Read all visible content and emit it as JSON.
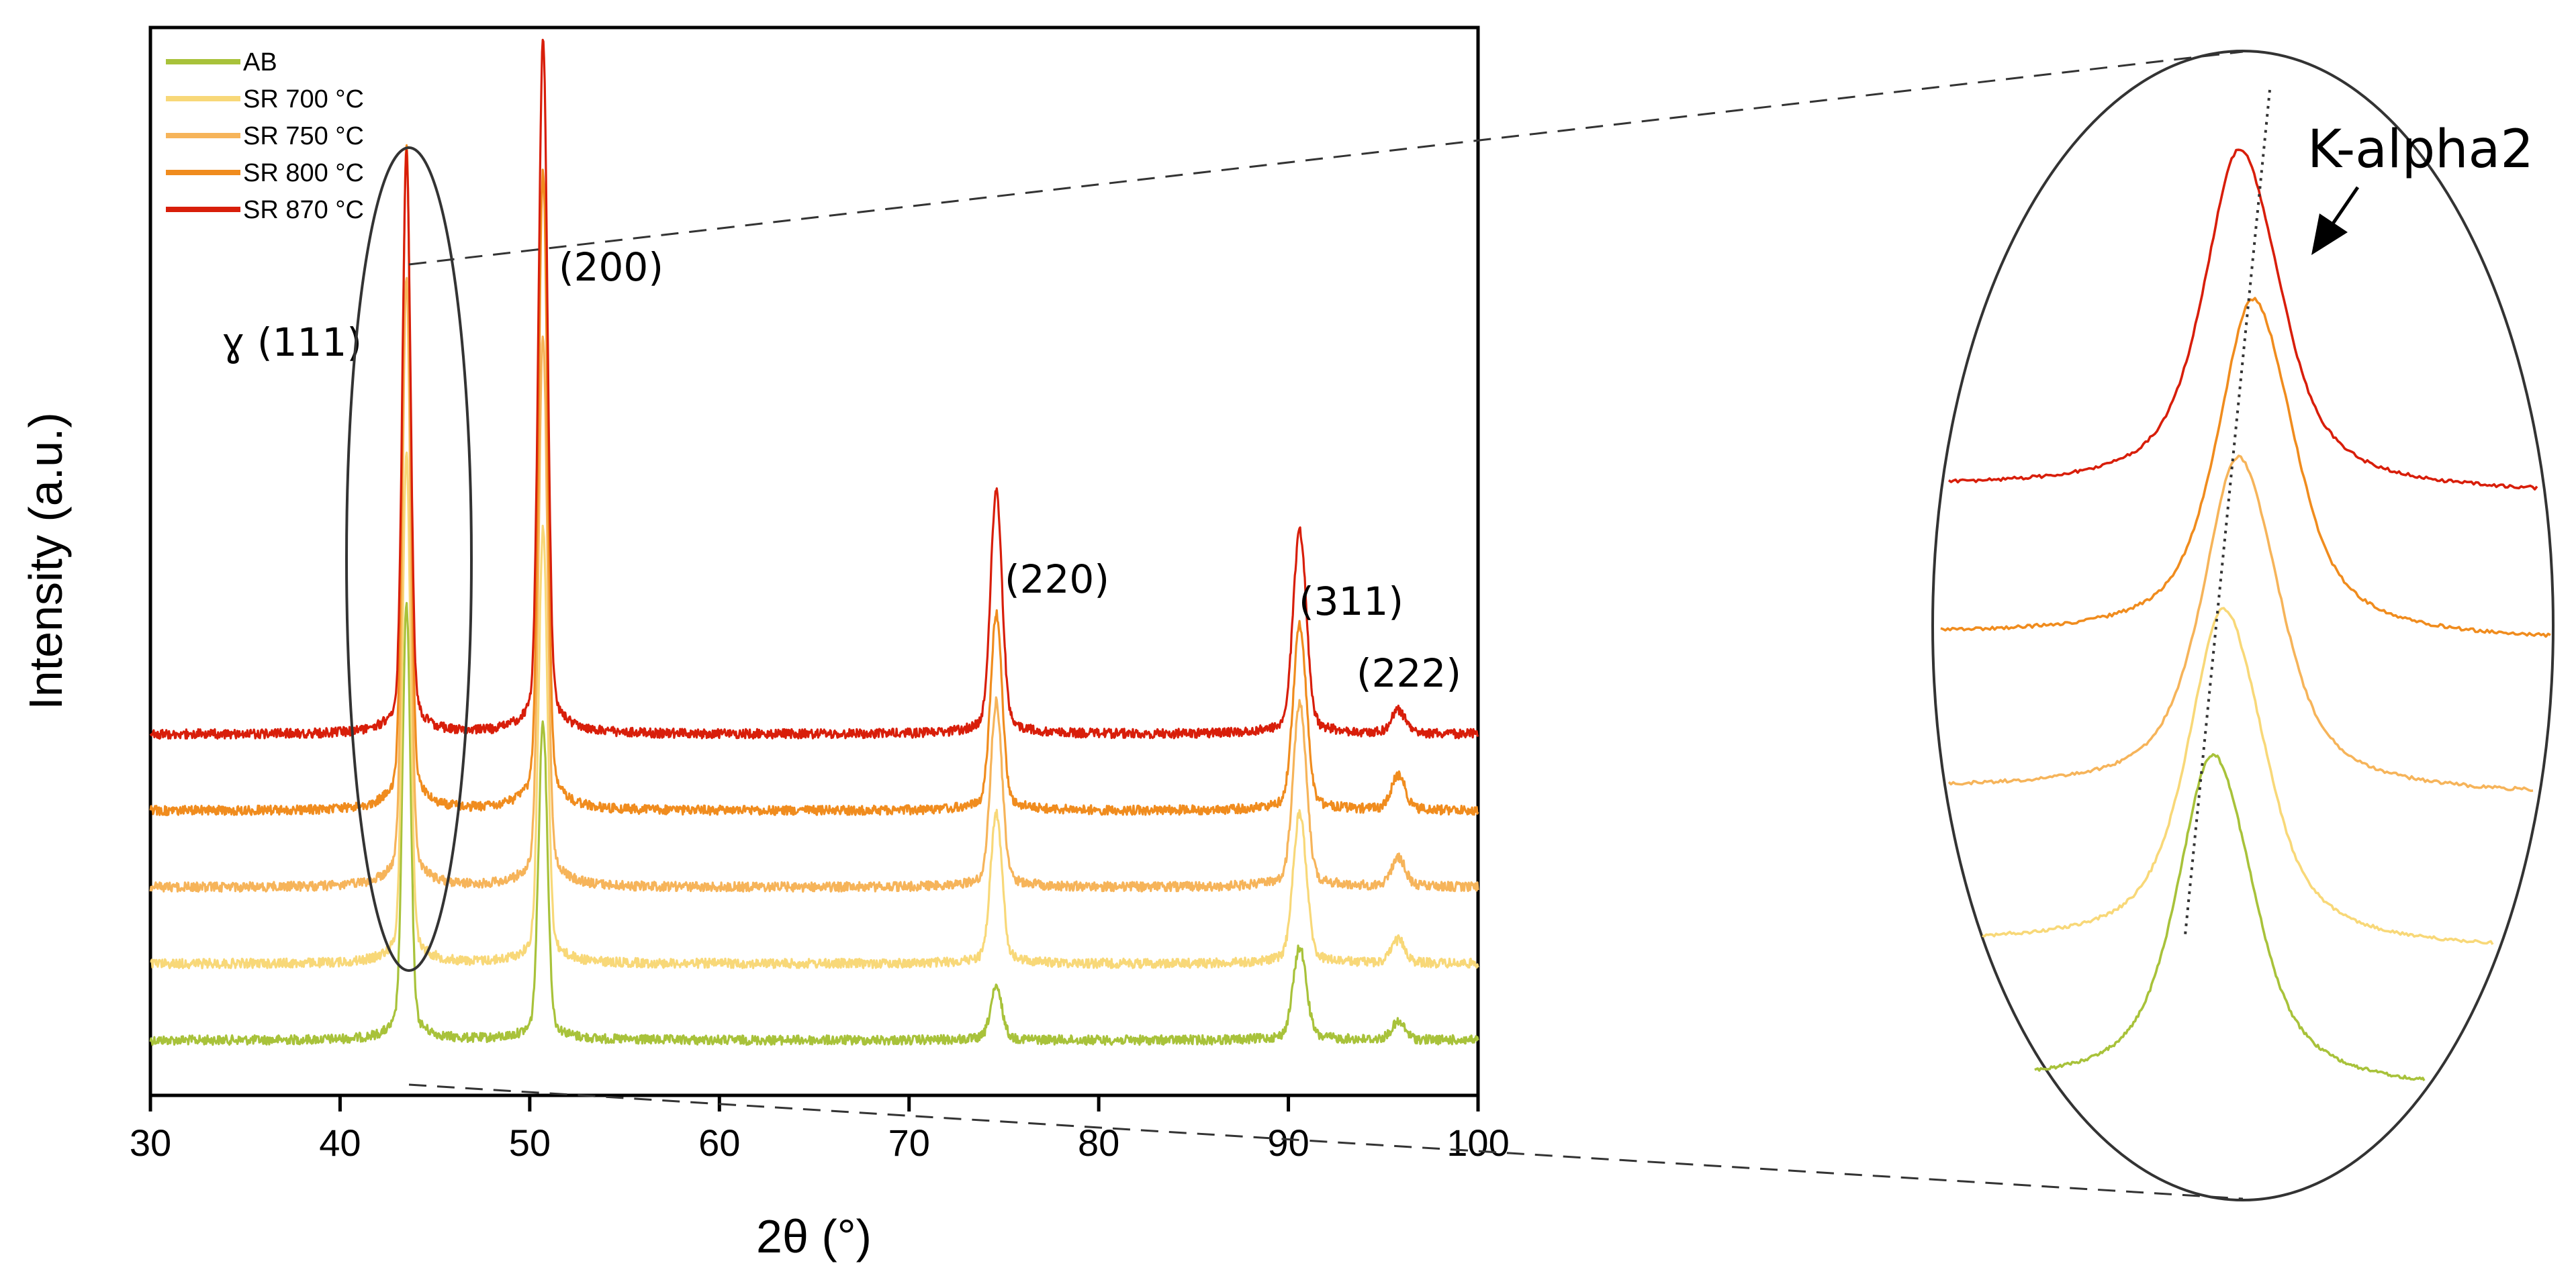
{
  "chart_data": {
    "type": "line",
    "xlabel": "2θ (°)",
    "ylabel": "Intensity (a.u.)",
    "xlim": [
      30,
      100
    ],
    "x_ticks": [
      "30",
      "40",
      "50",
      "60",
      "70",
      "80",
      "90",
      "100"
    ],
    "y_ticks": false,
    "grid": false,
    "legend_position": "top-left",
    "series": [
      {
        "name": "AB",
        "color": "#a8c23a",
        "offset": 0,
        "peaks": [
          {
            "x": 43.5,
            "h": 0.75
          },
          {
            "x": 50.7,
            "h": 0.55
          },
          {
            "x": 74.6,
            "h": 0.09
          },
          {
            "x": 90.6,
            "h": 0.16
          },
          {
            "x": 95.8,
            "h": 0.03
          }
        ]
      },
      {
        "name": "SR 700 °C",
        "color": "#f8d878",
        "offset": 1,
        "peaks": [
          {
            "x": 43.5,
            "h": 0.88
          },
          {
            "x": 50.7,
            "h": 0.75
          },
          {
            "x": 74.6,
            "h": 0.26
          },
          {
            "x": 90.6,
            "h": 0.26
          },
          {
            "x": 95.8,
            "h": 0.04
          }
        ]
      },
      {
        "name": "SR 750 °C",
        "color": "#f6b45a",
        "offset": 2,
        "peaks": [
          {
            "x": 43.5,
            "h": 1.05
          },
          {
            "x": 50.7,
            "h": 0.95
          },
          {
            "x": 74.6,
            "h": 0.32
          },
          {
            "x": 90.6,
            "h": 0.32
          },
          {
            "x": 95.8,
            "h": 0.05
          }
        ]
      },
      {
        "name": "SR 800 °C",
        "color": "#f08c1e",
        "offset": 3,
        "peaks": [
          {
            "x": 43.5,
            "h": 1.15
          },
          {
            "x": 50.7,
            "h": 1.1
          },
          {
            "x": 74.6,
            "h": 0.34
          },
          {
            "x": 90.6,
            "h": 0.32
          },
          {
            "x": 95.8,
            "h": 0.06
          }
        ]
      },
      {
        "name": "SR 870 °C",
        "color": "#d81e0a",
        "offset": 4,
        "peaks": [
          {
            "x": 43.5,
            "h": 1.0
          },
          {
            "x": 50.7,
            "h": 1.2
          },
          {
            "x": 74.6,
            "h": 0.42
          },
          {
            "x": 90.6,
            "h": 0.35
          },
          {
            "x": 95.8,
            "h": 0.04
          }
        ]
      }
    ],
    "annotations": [
      {
        "text": "ɣ (111)",
        "x": 43.5
      },
      {
        "text": "(200)",
        "x": 50.7
      },
      {
        "text": "(220)",
        "x": 74.6
      },
      {
        "text": "(311)",
        "x": 90.6
      },
      {
        "text": "(222)",
        "x": 95.8
      }
    ],
    "inset": {
      "description_text": "K-alpha2",
      "zoom_region_x": [
        41,
        46
      ]
    }
  }
}
